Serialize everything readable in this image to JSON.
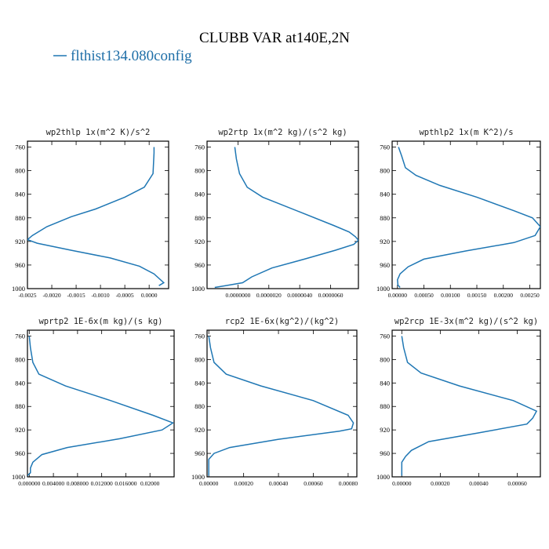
{
  "figure": {
    "title": "CLUBB VAR at140E,2N",
    "legend_label": "flthist134.080config",
    "legend_color": "#1f77b4"
  },
  "chart_data": [
    {
      "type": "line",
      "title": "wp2thlp  1x(m^2 K)/s^2",
      "xlabel": "",
      "ylabel": "",
      "xlim": [
        -0.0025,
        0.0004
      ],
      "ylim": [
        1000,
        750
      ],
      "xticks": [
        -0.0025,
        -0.002,
        -0.0015,
        -0.001,
        -0.0005,
        0.0
      ],
      "xtick_labels": [
        "-0.0025",
        "-0.0020",
        "-0.0015",
        "-0.0010",
        "-0.0005",
        "0.0000"
      ],
      "yticks": [
        760,
        800,
        840,
        880,
        920,
        960,
        1000
      ],
      "series": [
        {
          "color": "#1f77b4",
          "x": [
            0.0001,
            0.0001,
            8e-05,
            -0.0001,
            -0.0005,
            -0.0011,
            -0.0016,
            -0.0021,
            -0.0024,
            -0.0025,
            -0.0023,
            -0.0016,
            -0.0008,
            -0.0002,
            0.0001,
            0.0003,
            0.0002
          ],
          "y": [
            760,
            770,
            805,
            828,
            845,
            865,
            878,
            895,
            910,
            917,
            923,
            935,
            948,
            962,
            975,
            990,
            995
          ]
        }
      ]
    },
    {
      "type": "line",
      "title": "wp2rtp  1x(m^2 kg)/(s^2 kg)",
      "xlabel": "",
      "ylabel": "",
      "xlim": [
        -2e-06,
        7.8e-06
      ],
      "ylim": [
        1000,
        750
      ],
      "xticks": [
        0.0,
        2e-06,
        4e-06,
        6e-06
      ],
      "xtick_labels": [
        "0.0000000",
        "0.0000020",
        "0.0000040",
        "0.0000060"
      ],
      "yticks": [
        760,
        800,
        840,
        880,
        920,
        960,
        1000
      ],
      "series": [
        {
          "color": "#1f77b4",
          "x": [
            -2e-07,
            -1e-07,
            1e-07,
            6e-07,
            1.6e-06,
            4e-06,
            6.2e-06,
            7.2e-06,
            7.6e-06,
            7.8e-06,
            7.5e-06,
            6.3e-06,
            4.3e-06,
            2.2e-06,
            9e-07,
            3e-07,
            -8e-07,
            -1.5e-06
          ],
          "y": [
            760,
            780,
            805,
            828,
            845,
            870,
            893,
            904,
            912,
            918,
            925,
            935,
            950,
            965,
            980,
            990,
            995,
            998
          ]
        }
      ]
    },
    {
      "type": "line",
      "title": "wpthlp2  1x(m K^2)/s",
      "xlabel": "",
      "ylabel": "",
      "xlim": [
        -0.0001,
        0.0027
      ],
      "ylim": [
        1000,
        750
      ],
      "xticks": [
        0.0,
        0.0005,
        0.001,
        0.0015,
        0.002,
        0.0025
      ],
      "xtick_labels": [
        "0.00000",
        "0.00050",
        "0.00100",
        "0.00150",
        "0.00200",
        "0.00250"
      ],
      "yticks": [
        760,
        800,
        840,
        880,
        920,
        960,
        1000
      ],
      "series": [
        {
          "color": "#1f77b4",
          "x": [
            2e-05,
            8e-05,
            0.00015,
            0.00035,
            0.0008,
            0.0015,
            0.0022,
            0.00255,
            0.0027,
            0.0026,
            0.0022,
            0.0013,
            0.0005,
            0.0002,
            5e-05,
            0.0,
            1e-05,
            5e-05
          ],
          "y": [
            760,
            775,
            795,
            808,
            825,
            845,
            868,
            880,
            895,
            910,
            922,
            936,
            950,
            963,
            975,
            985,
            994,
            998
          ]
        }
      ]
    },
    {
      "type": "line",
      "title": "wprtp2  1E-6x(m kg)/(s kg)",
      "xlabel": "",
      "ylabel": "",
      "xlim": [
        -0.0003,
        0.024
      ],
      "ylim": [
        1000,
        750
      ],
      "xticks": [
        0.0,
        0.004,
        0.008,
        0.012,
        0.016,
        0.02
      ],
      "xtick_labels": [
        "0.000000",
        "0.004000",
        "0.008000",
        "0.012000",
        "0.016000",
        "0.02000"
      ],
      "yticks": [
        760,
        800,
        840,
        880,
        920,
        960,
        1000
      ],
      "series": [
        {
          "color": "#1f77b4",
          "x": [
            0.0,
            0.0002,
            0.0006,
            0.0016,
            0.006,
            0.0135,
            0.0205,
            0.0238,
            0.022,
            0.015,
            0.0063,
            0.0021,
            0.0006,
            0.0002,
            0.0002,
            -0.0003
          ],
          "y": [
            760,
            780,
            805,
            825,
            845,
            870,
            895,
            908,
            920,
            935,
            950,
            962,
            975,
            985,
            993,
            998
          ]
        }
      ]
    },
    {
      "type": "line",
      "title": "rcp2  1E-6x(kg^2)/(kg^2)",
      "xlabel": "",
      "ylabel": "",
      "xlim": [
        -1e-05,
        0.00085
      ],
      "ylim": [
        1000,
        750
      ],
      "xticks": [
        0.0,
        0.0002,
        0.0004,
        0.0006,
        0.0008
      ],
      "xtick_labels": [
        "0.00000",
        "0.00020",
        "0.00040",
        "0.00060",
        "0.00080"
      ],
      "yticks": [
        760,
        800,
        840,
        880,
        920,
        960,
        1000
      ],
      "series": [
        {
          "color": "#1f77b4",
          "x": [
            0.0,
            1e-05,
            3e-05,
            0.0001,
            0.0003,
            0.0006,
            0.0008,
            0.00083,
            0.00082,
            0.00075,
            0.0004,
            0.00012,
            3e-05,
            0.0,
            0.0,
            0.0
          ],
          "y": [
            760,
            780,
            805,
            825,
            845,
            870,
            895,
            908,
            918,
            922,
            936,
            950,
            960,
            970,
            985,
            998
          ]
        }
      ]
    },
    {
      "type": "line",
      "title": "wp2rcp  1E-3x(m^2 kg)/(s^2 kg)",
      "xlabel": "",
      "ylabel": "",
      "xlim": [
        -5e-05,
        0.00072
      ],
      "ylim": [
        1000,
        750
      ],
      "xticks": [
        0.0,
        0.0002,
        0.0004,
        0.0006
      ],
      "xtick_labels": [
        "0.00000",
        "0.00020",
        "0.00040",
        "0.00060"
      ],
      "yticks": [
        760,
        800,
        840,
        880,
        920,
        960,
        1000
      ],
      "series": [
        {
          "color": "#1f77b4",
          "x": [
            0.0,
            1e-05,
            3e-05,
            0.0001,
            0.0003,
            0.00058,
            0.0007,
            0.00068,
            0.00065,
            0.0004,
            0.00014,
            5e-05,
            2e-05,
            0.0,
            0.0,
            0.0
          ],
          "y": [
            760,
            780,
            805,
            823,
            845,
            870,
            888,
            900,
            910,
            925,
            940,
            955,
            965,
            975,
            988,
            998
          ]
        }
      ]
    }
  ]
}
